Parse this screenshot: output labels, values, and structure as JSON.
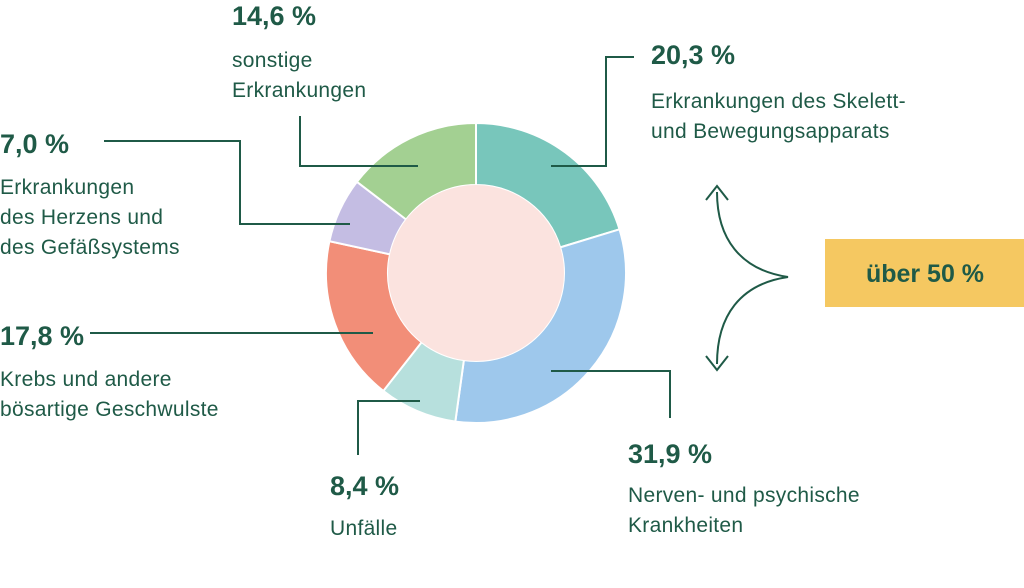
{
  "chart_data": {
    "type": "pie",
    "variant": "donut",
    "unit": "%",
    "categories": [
      "Erkrankungen des Skelett- und Bewegungsapparats",
      "Nerven- und psychische Krankheiten",
      "Unfälle",
      "Krebs und andere bösartige Geschwulste",
      "Erkrankungen des Herzens und des Gefäßsystems",
      "sonstige Erkrankungen"
    ],
    "values": [
      20.3,
      31.9,
      8.4,
      17.8,
      7.0,
      14.6
    ],
    "value_labels": [
      "20,3 %",
      "31,9 %",
      "8,4 %",
      "17,8 %",
      "7,0 %",
      "14,6 %"
    ],
    "label_lines": [
      [
        "Erkrankungen des Skelett-",
        "und Bewegungsapparats"
      ],
      [
        "Nerven- und psychische",
        "Krankheiten"
      ],
      [
        "Unfälle"
      ],
      [
        "Krebs und andere",
        "bösartige Geschwulste"
      ],
      [
        "Erkrankungen",
        "des Herzens und",
        "des Gefäßsystems"
      ],
      [
        "sonstige",
        "Erkrankungen"
      ]
    ],
    "colors": [
      "#78c6bb",
      "#9ec8ec",
      "#b7e0dd",
      "#f28e78",
      "#c4bde3",
      "#a3d092"
    ],
    "center_color": "#fbe3df",
    "start_angle_deg": 0,
    "direction": "clockwise",
    "annotation": {
      "text": "über 50 %",
      "spans": [
        0,
        1
      ],
      "box_color": "#f5c861"
    }
  },
  "colors": {
    "text": "#1f5a47",
    "leader": "#1f5a47"
  }
}
